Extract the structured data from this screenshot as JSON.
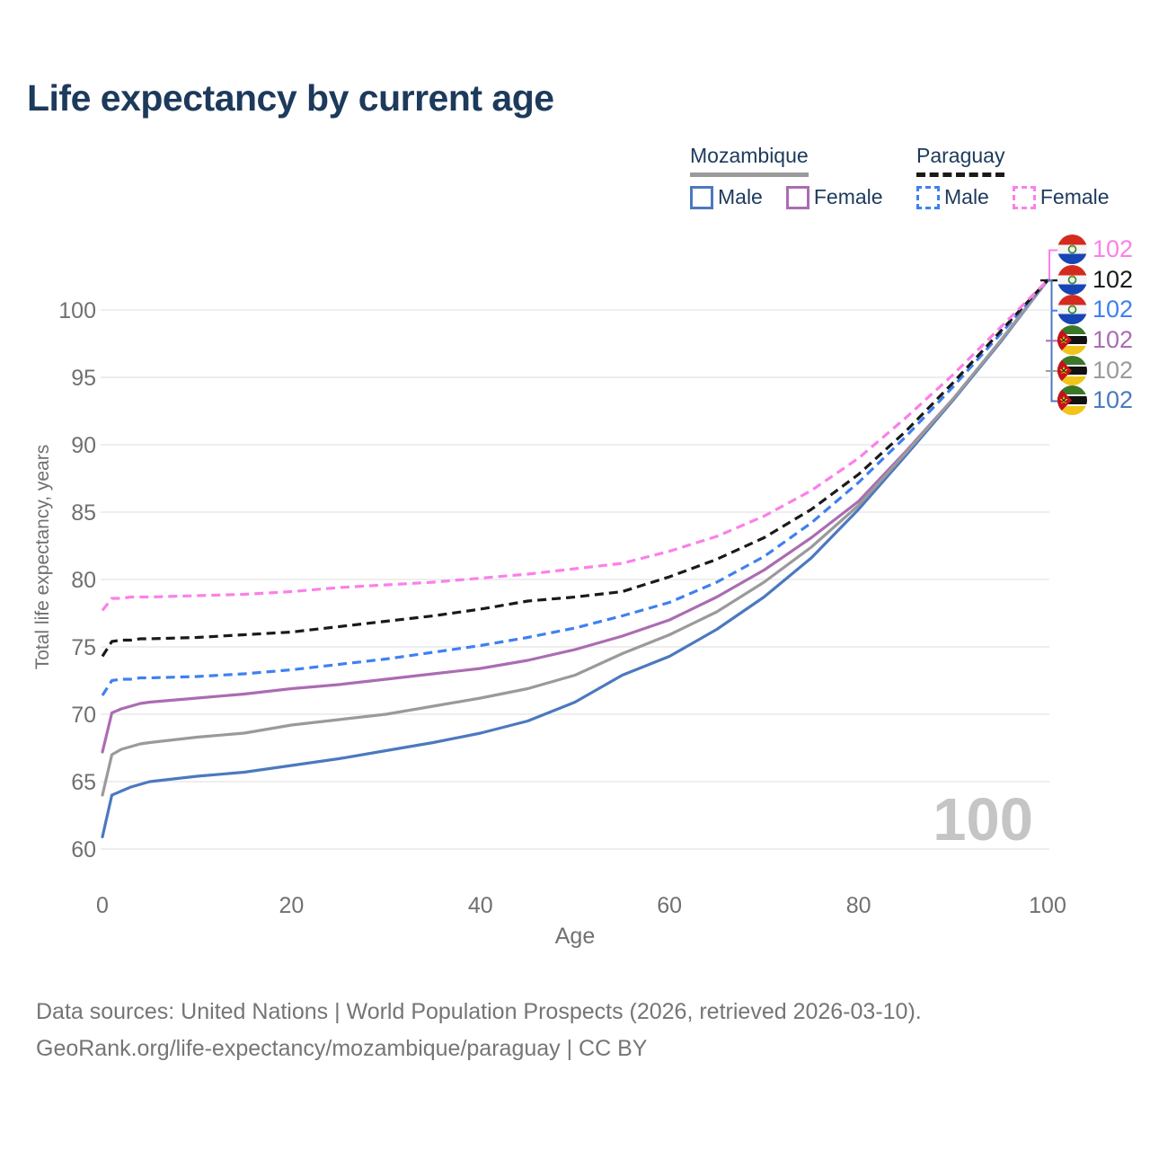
{
  "title": "Life expectancy by current age",
  "watermark": "100",
  "colors": {
    "title_text": "#1d3a5c",
    "legend_text": "#1d3a5c",
    "axis_text": "#707070",
    "gridline": "#e8e8e8",
    "watermark": "#c5c5c5",
    "footer_text": "#757575",
    "mozambique_male": "#4b79bf",
    "mozambique_female": "#ab6cb2",
    "mozambique_total": "#9a9a9a",
    "paraguay_male": "#3f80f0",
    "paraguay_female": "#fb80e8",
    "paraguay_total": "#1a1a1a"
  },
  "legend": {
    "groups": [
      {
        "name": "Mozambique",
        "underline_style": "solid",
        "underline_color": "#9a9a9a",
        "items": [
          {
            "label": "Male",
            "color": "#4b79bf",
            "dashed": false
          },
          {
            "label": "Female",
            "color": "#ab6cb2",
            "dashed": false
          }
        ]
      },
      {
        "name": "Paraguay",
        "underline_style": "dashed",
        "underline_color": "#1a1a1a",
        "items": [
          {
            "label": "Male",
            "color": "#3f80f0",
            "dashed": true
          },
          {
            "label": "Female",
            "color": "#fb80e8",
            "dashed": true
          }
        ]
      }
    ]
  },
  "chart_data": {
    "type": "line",
    "title": "Life expectancy by current age",
    "xlabel": "Age",
    "ylabel": "Total life expectancy, years",
    "xlim": [
      0,
      100
    ],
    "ylim": [
      60,
      103
    ],
    "x_ticks": [
      0,
      20,
      40,
      60,
      80,
      100
    ],
    "y_ticks": [
      60,
      65,
      70,
      75,
      80,
      85,
      90,
      95,
      100
    ],
    "grid": "horizontal",
    "legend_position": "top-right",
    "x": [
      0,
      1,
      2,
      3,
      4,
      5,
      10,
      15,
      20,
      25,
      30,
      35,
      40,
      45,
      50,
      55,
      60,
      65,
      70,
      75,
      80,
      85,
      90,
      95,
      100
    ],
    "series": [
      {
        "name": "Mozambique Male",
        "country": "mozambique",
        "sex": "male",
        "color": "#4b79bf",
        "dashed": false,
        "end_value": 102,
        "values": [
          60.9,
          64.0,
          64.3,
          64.6,
          64.8,
          65.0,
          65.4,
          65.7,
          66.2,
          66.7,
          67.3,
          67.9,
          68.6,
          69.5,
          70.9,
          72.9,
          74.3,
          76.3,
          78.7,
          81.6,
          85.2,
          89.2,
          93.3,
          97.6,
          102.2
        ]
      },
      {
        "name": "Mozambique Female",
        "country": "mozambique",
        "sex": "female",
        "color": "#ab6cb2",
        "dashed": false,
        "end_value": 102,
        "values": [
          67.2,
          70.1,
          70.4,
          70.6,
          70.8,
          70.9,
          71.2,
          71.5,
          71.9,
          72.2,
          72.6,
          73.0,
          73.4,
          74.0,
          74.8,
          75.8,
          77.0,
          78.7,
          80.7,
          83.1,
          85.8,
          89.5,
          93.4,
          97.7,
          102.2
        ]
      },
      {
        "name": "Mozambique Both sexes",
        "country": "mozambique",
        "sex": "total",
        "color": "#9a9a9a",
        "dashed": false,
        "end_value": 102,
        "values": [
          64.0,
          67.0,
          67.4,
          67.6,
          67.8,
          67.9,
          68.3,
          68.6,
          69.2,
          69.6,
          70.0,
          70.6,
          71.2,
          71.9,
          72.9,
          74.5,
          75.9,
          77.6,
          79.8,
          82.4,
          85.5,
          89.4,
          93.4,
          97.7,
          102.2
        ]
      },
      {
        "name": "Paraguay Male",
        "country": "paraguay",
        "sex": "male",
        "color": "#3f80f0",
        "dashed": true,
        "end_value": 102,
        "values": [
          71.4,
          72.5,
          72.6,
          72.6,
          72.7,
          72.7,
          72.8,
          73.0,
          73.3,
          73.7,
          74.1,
          74.6,
          75.1,
          75.7,
          76.4,
          77.3,
          78.3,
          79.8,
          81.7,
          84.2,
          87.2,
          90.6,
          94.3,
          98.2,
          102.2
        ]
      },
      {
        "name": "Paraguay Both sexes",
        "country": "paraguay",
        "sex": "total",
        "color": "#1a1a1a",
        "dashed": true,
        "end_value": 102,
        "values": [
          74.3,
          75.4,
          75.5,
          75.5,
          75.6,
          75.6,
          75.7,
          75.9,
          76.1,
          76.5,
          76.9,
          77.3,
          77.8,
          78.4,
          78.7,
          79.1,
          80.2,
          81.5,
          83.1,
          85.2,
          87.8,
          91.0,
          94.6,
          98.4,
          102.2
        ]
      },
      {
        "name": "Paraguay Female",
        "country": "paraguay",
        "sex": "female",
        "color": "#fb80e8",
        "dashed": true,
        "end_value": 102,
        "values": [
          77.7,
          78.6,
          78.6,
          78.7,
          78.7,
          78.7,
          78.8,
          78.9,
          79.1,
          79.4,
          79.6,
          79.8,
          80.1,
          80.4,
          80.8,
          81.2,
          82.1,
          83.2,
          84.7,
          86.6,
          89.0,
          92.0,
          95.2,
          98.7,
          102.2
        ]
      }
    ]
  },
  "right_labels": [
    {
      "value": "102",
      "color": "#fb80e8",
      "flag": "paraguay",
      "series": "Paraguay Female"
    },
    {
      "value": "102",
      "color": "#1a1a1a",
      "flag": "paraguay",
      "series": "Paraguay Both sexes"
    },
    {
      "value": "102",
      "color": "#3f80f0",
      "flag": "paraguay",
      "series": "Paraguay Male"
    },
    {
      "value": "102",
      "color": "#ab6cb2",
      "flag": "mozambique",
      "series": "Mozambique Female"
    },
    {
      "value": "102",
      "color": "#9a9a9a",
      "flag": "mozambique",
      "series": "Mozambique Both sexes"
    },
    {
      "value": "102",
      "color": "#4b79bf",
      "flag": "mozambique",
      "series": "Mozambique Male"
    }
  ],
  "footer": {
    "line1": "Data sources: United Nations | World Population Prospects (2026, retrieved 2026-03-10).",
    "line2": "GeoRank.org/life-expectancy/mozambique/paraguay | CC BY"
  }
}
